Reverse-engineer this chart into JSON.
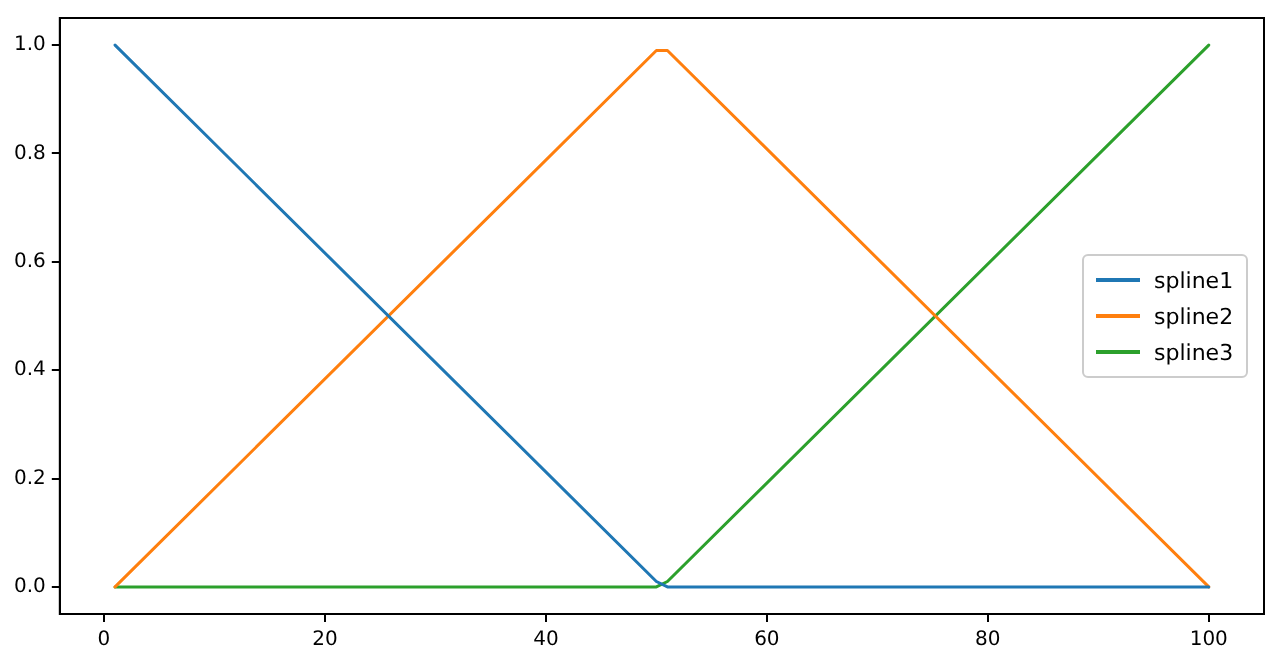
{
  "chart_data": {
    "type": "line",
    "legend": "right",
    "marker": "none",
    "line_style": "solid",
    "grid": false,
    "xlim": [
      -4,
      105
    ],
    "xticks": [
      0,
      20,
      40,
      60,
      80,
      100
    ],
    "ylim": [
      -0.05,
      1.05
    ],
    "yticks": [
      {
        "value": 0,
        "label": "0.0"
      },
      {
        "value": 0.2,
        "label": "0.2"
      },
      {
        "value": 0.4,
        "label": "0.4"
      },
      {
        "value": 0.6,
        "label": "0.6"
      },
      {
        "value": 0.8,
        "label": "0.8"
      },
      {
        "value": 1,
        "label": "1.0"
      }
    ],
    "series": [
      {
        "name": "spline1",
        "color": "#1f77b4",
        "x": [
          1,
          50,
          51,
          100
        ],
        "values": [
          1,
          0.01,
          0,
          0
        ]
      },
      {
        "name": "spline2",
        "color": "#ff7f0e",
        "x": [
          1,
          50,
          51,
          100
        ],
        "values": [
          0,
          0.99,
          0.99,
          0
        ]
      },
      {
        "name": "spline3",
        "color": "#2ca02c",
        "x": [
          1,
          50,
          51,
          100
        ],
        "values": [
          0,
          0,
          0.01,
          1
        ]
      }
    ]
  }
}
